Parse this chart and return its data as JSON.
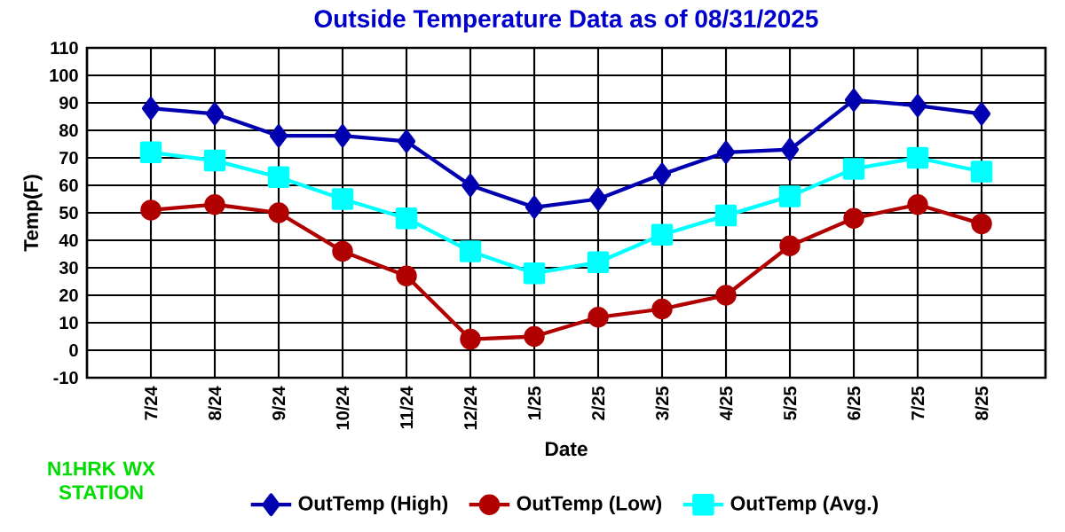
{
  "chart_data": {
    "type": "line",
    "title": "Outside Temperature Data as of 08/31/2025",
    "xlabel": "Date",
    "ylabel": "Temp(F)",
    "categories": [
      "7/24",
      "8/24",
      "9/24",
      "10/24",
      "11/24",
      "12/24",
      "1/25",
      "2/25",
      "3/25",
      "4/25",
      "5/25",
      "6/25",
      "7/25",
      "8/25"
    ],
    "series": [
      {
        "name": "OutTemp (High)",
        "color": "#0000b0",
        "marker": "diamond",
        "values": [
          88,
          86,
          78,
          78,
          76,
          60,
          52,
          55,
          64,
          72,
          73,
          91,
          89,
          86
        ]
      },
      {
        "name": "OutTemp (Low)",
        "color": "#b00000",
        "marker": "circle",
        "values": [
          51,
          53,
          50,
          36,
          27,
          4,
          5,
          12,
          15,
          20,
          38,
          48,
          53,
          46
        ]
      },
      {
        "name": "OutTemp (Avg.)",
        "color": "#00ffff",
        "marker": "square",
        "values": [
          72,
          69,
          63,
          55,
          48,
          36,
          28,
          32,
          42,
          49,
          56,
          66,
          70,
          65
        ]
      }
    ],
    "ylim": [
      -10,
      110
    ],
    "yticks": [
      -10,
      0,
      10,
      20,
      30,
      40,
      50,
      60,
      70,
      80,
      90,
      100,
      110
    ],
    "grid": true,
    "legend": "bottom",
    "line_style": "solid",
    "annotations": [
      "N1HRK WX STATION"
    ]
  }
}
